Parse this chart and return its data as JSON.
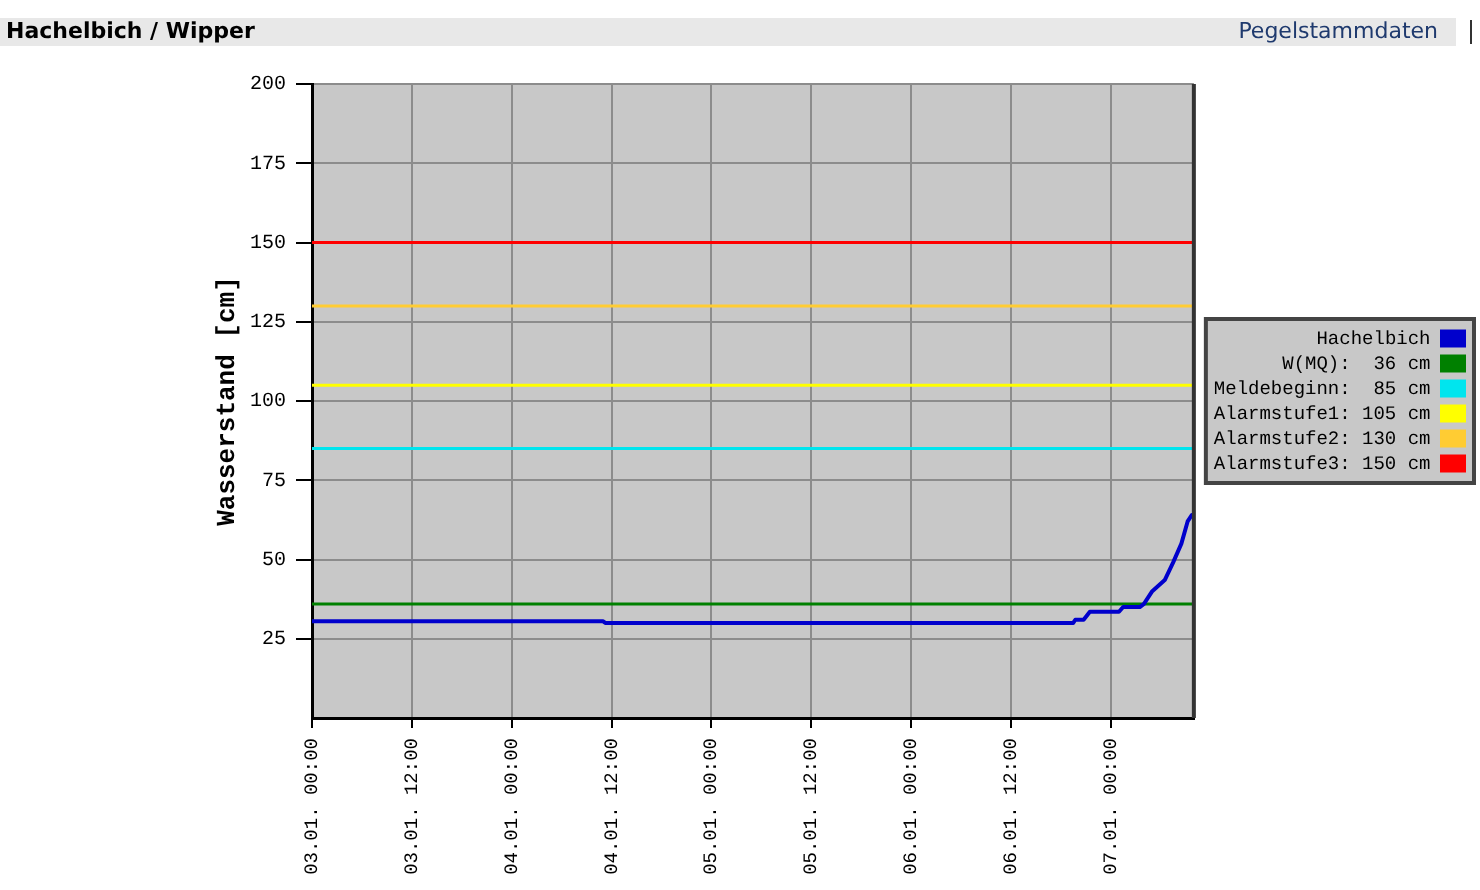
{
  "chart_data": {
    "type": "line",
    "title": "Hachelbich / Wipper",
    "annotations": [
      "Pegelstammdaten"
    ],
    "ylabel": "Wasserstand [cm]",
    "x": [
      "--01-03T00:00",
      "--01-04T11:00",
      "--01-04T11:15",
      "--01-06T19:30",
      "--01-06T19:45",
      "--01-06T20:45",
      "--01-06T21:30",
      "--01-07T01:00",
      "--01-07T01:30",
      "--01-07T03:30",
      "--01-07T04:00",
      "--01-07T05:00",
      "--01-07T06:30",
      "--01-07T07:30",
      "--01-07T08:30",
      "--01-07T09:15",
      "--01-07T09:45"
    ],
    "series": [
      {
        "name": "Hachelbich",
        "color": "#0000cc",
        "values": [
          30.5,
          30.5,
          30,
          30,
          31,
          31,
          33.5,
          33.5,
          35,
          35,
          36,
          40,
          43.5,
          49,
          55,
          62,
          64
        ]
      }
    ],
    "xlim": [
      "--01-03T00:00",
      "--01-07T10:00"
    ],
    "xticks": [
      {
        "value": "--01-03T00:00",
        "label": "03.01. 00:00"
      },
      {
        "value": "--01-03T12:00",
        "label": "03.01. 12:00"
      },
      {
        "value": "--01-04T00:00",
        "label": "04.01. 00:00"
      },
      {
        "value": "--01-04T12:00",
        "label": "04.01. 12:00"
      },
      {
        "value": "--01-05T00:00",
        "label": "05.01. 00:00"
      },
      {
        "value": "--01-05T12:00",
        "label": "05.01. 12:00"
      },
      {
        "value": "--01-06T00:00",
        "label": "06.01. 00:00"
      },
      {
        "value": "--01-06T12:00",
        "label": "06.01. 12:00"
      },
      {
        "value": "--01-07T00:00",
        "label": "07.01. 00:00"
      }
    ],
    "ylim": [
      0,
      200
    ],
    "yticks": [
      25,
      50,
      75,
      100,
      125,
      150,
      175,
      200
    ],
    "ref_lines": [
      {
        "axis": "y",
        "value": 36,
        "label": "W(MQ):  36 cm",
        "color": "#008000"
      },
      {
        "axis": "y",
        "value": 85,
        "label": "Meldebeginn:  85 cm",
        "color": "#00e5ee"
      },
      {
        "axis": "y",
        "value": 105,
        "label": "Alarmstufe1: 105 cm",
        "color": "#ffff00"
      },
      {
        "axis": "y",
        "value": 130,
        "label": "Alarmstufe2: 130 cm",
        "color": "#ffcc33"
      },
      {
        "axis": "y",
        "value": 150,
        "label": "Alarmstufe3: 150 cm",
        "color": "#ff0000"
      }
    ],
    "grid": true,
    "legend": "right",
    "marker": "none",
    "line_style": "solid"
  }
}
